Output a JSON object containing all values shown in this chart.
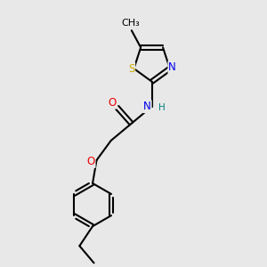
{
  "bg_color": "#e8e8e8",
  "bond_color": "#000000",
  "bond_width": 1.5,
  "atom_colors": {
    "S": "#ccaa00",
    "N": "#0000ee",
    "O": "#ee0000",
    "H": "#008080",
    "C": "#000000"
  },
  "font_size": 8.5,
  "fig_size": [
    3.0,
    3.0
  ],
  "dpi": 100
}
